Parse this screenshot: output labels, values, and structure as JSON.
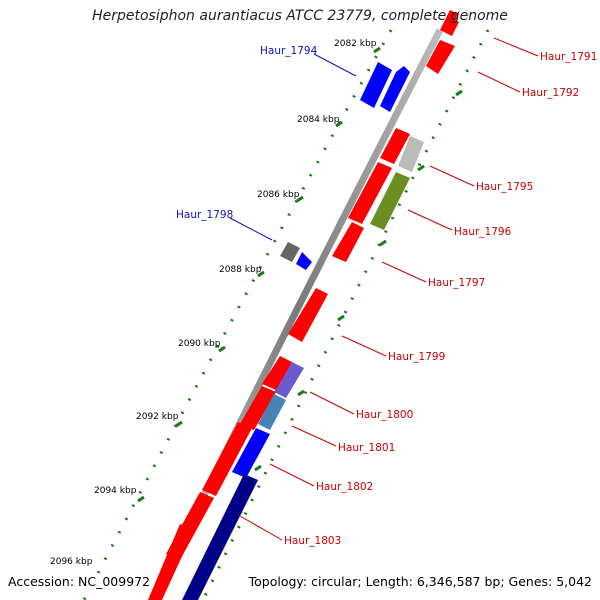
{
  "title": "Herpetosiphon aurantiacus ATCC 23779, complete genome",
  "footer": {
    "accession": "Accession: NC_009972",
    "summary": "Topology: circular; Length: 6,346,587 bp; Genes: 5,042"
  },
  "colors": {
    "forward": "#ff0000",
    "reverse": "#0000ff",
    "darkblue": "#000088",
    "olive": "#6b8e23",
    "grey": "#bbbbbb",
    "steel": "#4682b4",
    "slate": "#6a5acd",
    "dots": "#1a7a1a"
  },
  "ticks": [
    "2082 kbp",
    "2084 kbp",
    "2086 kbp",
    "2088 kbp",
    "2090 kbp",
    "2092 kbp",
    "2094 kbp",
    "2096 kbp"
  ],
  "genes": [
    {
      "name": "Haur_1791",
      "strand": "forward",
      "color": "#ff0000"
    },
    {
      "name": "Haur_1792",
      "strand": "forward",
      "color": "#ff0000"
    },
    {
      "name": "Haur_1794",
      "strand": "reverse",
      "color": "#0000ff"
    },
    {
      "name": "Haur_1795",
      "strand": "forward",
      "color": "#bbbbbb"
    },
    {
      "name": "Haur_1796",
      "strand": "forward",
      "color": "#6b8e23"
    },
    {
      "name": "Haur_1797",
      "strand": "forward",
      "color": "#ff0000"
    },
    {
      "name": "Haur_1798",
      "strand": "reverse",
      "color": "#666666"
    },
    {
      "name": "Haur_1799",
      "strand": "forward",
      "color": "#ff0000"
    },
    {
      "name": "Haur_1800",
      "strand": "forward",
      "color": "#6a5acd"
    },
    {
      "name": "Haur_1801",
      "strand": "forward",
      "color": "#4682b4"
    },
    {
      "name": "Haur_1802",
      "strand": "forward",
      "color": "#0000ff"
    },
    {
      "name": "Haur_1803",
      "strand": "forward",
      "color": "#000088"
    }
  ]
}
